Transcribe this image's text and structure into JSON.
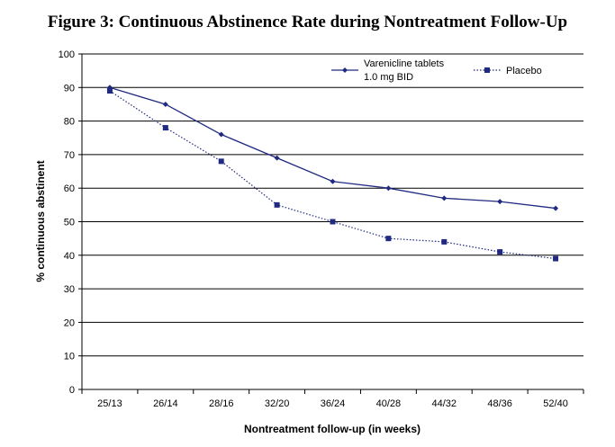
{
  "chart_data": {
    "type": "line",
    "title": "Figure 3: Continuous Abstinence Rate during Nontreatment Follow-Up",
    "xlabel": "Nontreatment follow-up (in weeks)",
    "ylabel": "% continuous abstinent",
    "ylim": [
      0,
      100
    ],
    "yticks": [
      0,
      10,
      20,
      30,
      40,
      50,
      60,
      70,
      80,
      90,
      100
    ],
    "categories": [
      "25/13",
      "26/14",
      "28/16",
      "32/20",
      "36/24",
      "40/28",
      "44/32",
      "48/36",
      "52/40"
    ],
    "grid": true,
    "legend_position": "top-right",
    "series": [
      {
        "name_line1": "Varenicline tablets",
        "name_line2": "1.0 mg BID",
        "marker": "diamond",
        "style": "solid",
        "color": "#1f2a80",
        "values": [
          90,
          85,
          76,
          69,
          62,
          60,
          57,
          56,
          54
        ]
      },
      {
        "name_line1": "Placebo",
        "name_line2": "",
        "marker": "square",
        "style": "dotted",
        "color": "#1f2a80",
        "values": [
          89,
          78,
          68,
          55,
          50,
          45,
          44,
          41,
          39
        ]
      }
    ]
  }
}
